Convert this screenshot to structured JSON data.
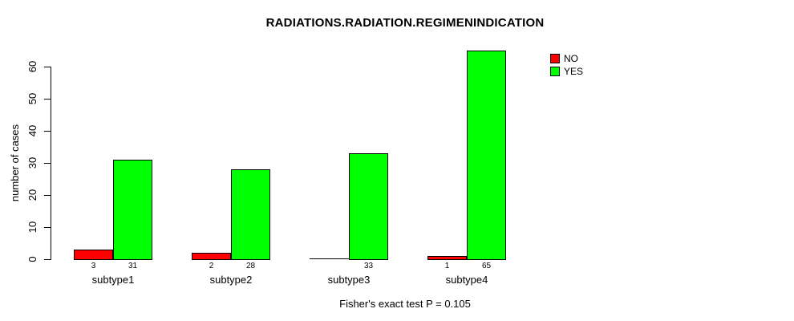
{
  "chart_data": {
    "type": "bar",
    "title": "RADIATIONS.RADIATION.REGIMENINDICATION",
    "ylabel": "number of cases",
    "xlabel": "",
    "caption": "Fisher's exact test P = 0.105",
    "categories": [
      "subtype1",
      "subtype2",
      "subtype3",
      "subtype4"
    ],
    "series": [
      {
        "name": "NO",
        "color": "#ff0000",
        "values": [
          3,
          2,
          0,
          1
        ],
        "bar_labels": [
          "3",
          "2",
          "",
          "1"
        ]
      },
      {
        "name": "YES",
        "color": "#00ff00",
        "values": [
          31,
          28,
          33,
          65
        ],
        "bar_labels": [
          "31",
          "28",
          "33",
          "65"
        ]
      }
    ],
    "yticks": [
      0,
      10,
      20,
      30,
      40,
      50,
      60
    ],
    "ylim": [
      0,
      66
    ],
    "grid": false,
    "legend_position": "top-right",
    "bar_border_color": "#000000",
    "background_color": "#ffffff",
    "text_color": "#000000"
  }
}
